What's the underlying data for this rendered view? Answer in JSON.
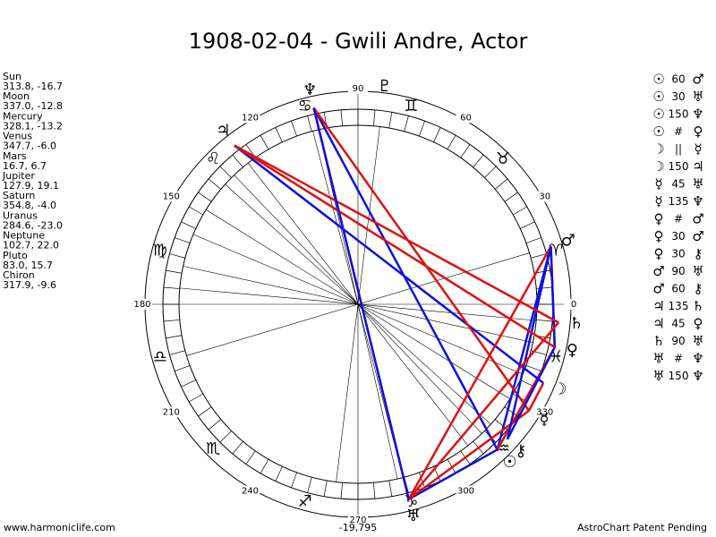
{
  "header": {
    "title": "1908-02-04 - Gwili Andre, Actor"
  },
  "planets": [
    {
      "name": "Sun",
      "glyph": "☉",
      "position": "313.8, -16.7"
    },
    {
      "name": "Moon",
      "glyph": "☽",
      "position": "337.0, -12.8"
    },
    {
      "name": "Mercury",
      "glyph": "☿",
      "position": "328.1, -13.2"
    },
    {
      "name": "Venus",
      "glyph": "♀",
      "position": "347.7, -6.0"
    },
    {
      "name": "Mars",
      "glyph": "♂",
      "position": "16.7, 6.7"
    },
    {
      "name": "Jupiter",
      "glyph": "♃",
      "position": "127.9, 19.1"
    },
    {
      "name": "Saturn",
      "glyph": "♄",
      "position": "354.8, -4.0"
    },
    {
      "name": "Uranus",
      "glyph": "♅",
      "position": "284.6, -23.0"
    },
    {
      "name": "Neptune",
      "glyph": "♆",
      "position": "102.7, 22.0"
    },
    {
      "name": "Pluto",
      "glyph": "♇",
      "position": "83.0, 15.7"
    },
    {
      "name": "Chiron",
      "glyph": "⚷",
      "position": "317.9, -9.6"
    }
  ],
  "aspects": [
    {
      "from": "☉",
      "aspect": "60",
      "to": "♂",
      "color": "#1010e0"
    },
    {
      "from": "☉",
      "aspect": "30",
      "to": "♅",
      "color": "#1010e0"
    },
    {
      "from": "☉",
      "aspect": "150",
      "to": "♆",
      "color": "#1010e0"
    },
    {
      "from": "☉",
      "aspect": "#",
      "to": "♀",
      "color": "#e01010"
    },
    {
      "from": "☽",
      "aspect": "||",
      "to": "☿",
      "color": "#e01010"
    },
    {
      "from": "☽",
      "aspect": "150",
      "to": "♃",
      "color": "#1010e0"
    },
    {
      "from": "☿",
      "aspect": "45",
      "to": "♅",
      "color": "#e01010"
    },
    {
      "from": "☿",
      "aspect": "135",
      "to": "♆",
      "color": "#e01010"
    },
    {
      "from": "♀",
      "aspect": "#",
      "to": "♂",
      "color": "#e01010"
    },
    {
      "from": "♀",
      "aspect": "30",
      "to": "♂",
      "color": "#1010e0"
    },
    {
      "from": "♀",
      "aspect": "30",
      "to": "⚷",
      "color": "#1010e0"
    },
    {
      "from": "♂",
      "aspect": "90",
      "to": "♅",
      "color": "#e01010"
    },
    {
      "from": "♂",
      "aspect": "60",
      "to": "⚷",
      "color": "#1010e0"
    },
    {
      "from": "♃",
      "aspect": "135",
      "to": "♄",
      "color": "#e01010"
    },
    {
      "from": "♃",
      "aspect": "45",
      "to": "♀",
      "color": "#e01010"
    },
    {
      "from": "♄",
      "aspect": "90",
      "to": "♅",
      "color": "#e01010"
    },
    {
      "from": "♅",
      "aspect": "#",
      "to": "♆",
      "color": "#e01010"
    },
    {
      "from": "♅",
      "aspect": "150",
      "to": "♆",
      "color": "#1010e0"
    }
  ],
  "signs": [
    "♈",
    "♉",
    "♊",
    "♋",
    "♌",
    "♍",
    "♎",
    "♏",
    "♐",
    "♑",
    "♒",
    "♓"
  ],
  "degree_labels": [
    0,
    30,
    60,
    90,
    120,
    150,
    180,
    210,
    240,
    270,
    300,
    330
  ],
  "footer": {
    "site": "www.harmoniclife.com",
    "number": "-19,795",
    "note": "AstroChart Patent Pending"
  }
}
